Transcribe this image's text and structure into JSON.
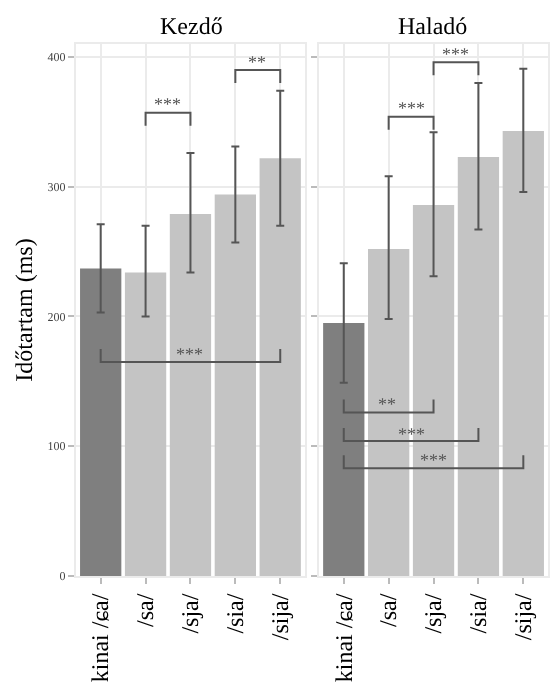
{
  "chart_data": [
    {
      "type": "bar",
      "title": "Kezdő",
      "ylabel": "Időtartam (ms)",
      "categories": [
        "kinai /ɕa/",
        "/sa/",
        "/sja/",
        "/sia/",
        "/sija/"
      ],
      "values": [
        237,
        234,
        279,
        294,
        322
      ],
      "colors": [
        "#7f7f7f",
        "#c4c4c4",
        "#c4c4c4",
        "#c4c4c4",
        "#c4c4c4"
      ],
      "errors": [
        [
          203,
          271
        ],
        [
          200,
          270
        ],
        [
          234,
          326
        ],
        [
          257,
          331
        ],
        [
          270,
          374
        ]
      ],
      "ylim": [
        0,
        410
      ],
      "yticks": [
        0,
        100,
        200,
        300,
        400
      ],
      "grid": true,
      "annotations": [
        "***",
        "**",
        "***"
      ]
    },
    {
      "type": "bar",
      "title": "Haladó",
      "categories": [
        "kinai /ɕa/",
        "/sa/",
        "/sja/",
        "/sia/",
        "/sija/"
      ],
      "values": [
        195,
        252,
        286,
        323,
        343
      ],
      "colors": [
        "#7f7f7f",
        "#c4c4c4",
        "#c4c4c4",
        "#c4c4c4",
        "#c4c4c4"
      ],
      "errors": [
        [
          149,
          241
        ],
        [
          198,
          308
        ],
        [
          231,
          342
        ],
        [
          267,
          380
        ],
        [
          296,
          391
        ]
      ],
      "ylim": [
        0,
        410
      ],
      "yticks": [
        0,
        100,
        200,
        300,
        400
      ],
      "grid": true,
      "tick_labels": "x",
      "annotations": [
        "***",
        "***",
        "**",
        "***",
        "***"
      ]
    }
  ]
}
